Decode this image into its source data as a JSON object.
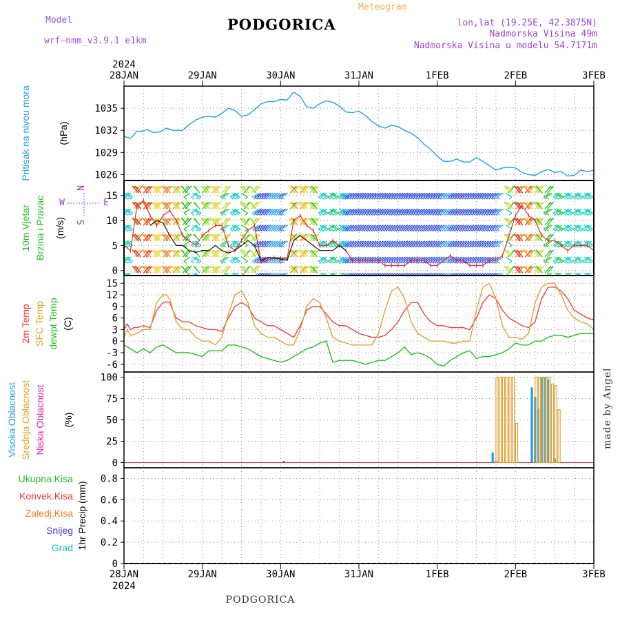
{
  "header": {
    "model_label": "Model",
    "model_name": "wrf—nmm_v3.9.1  e1km",
    "title": "PODGORICA",
    "meteogram": "Meteogram",
    "lonlat": "lon,lat (19.25E, 42.3875N)",
    "altitude": "Nadmorska Visina 49m",
    "model_altitude": "Nadmorska Visina u modelu 54.7171m",
    "year": "2024",
    "footer": "PODGORICA",
    "credit": "made by Angel",
    "colors": {
      "model": "#a050d0",
      "meteogram": "#e8b450",
      "info": "#a040d0"
    }
  },
  "time_axis": {
    "labels": [
      "28JAN",
      "29JAN",
      "30JAN",
      "31JAN",
      "1FEB",
      "2FEB",
      "3FEB"
    ],
    "hours_total": 144
  },
  "chart_data": [
    {
      "type": "line",
      "panel": "pressure",
      "ylabel_lines": [
        "Pritisak na nivou mora",
        "(hPa)"
      ],
      "ylabel_colors": [
        "#1ea0e8",
        "#000000"
      ],
      "yticks": [
        1026,
        1029,
        1032,
        1035
      ],
      "ylim": [
        1025.2,
        1038.0
      ],
      "series": [
        {
          "color": "#1ea0e8",
          "x": [
            0,
            2,
            4,
            5,
            7,
            9,
            11,
            13,
            15,
            18,
            20,
            22,
            24,
            26,
            28,
            30,
            32,
            34,
            36,
            38,
            40,
            42,
            44,
            46,
            48,
            50,
            52,
            54,
            56,
            58,
            60,
            62,
            64,
            66,
            68,
            70,
            72,
            74,
            76,
            78,
            80,
            82,
            84,
            86,
            88,
            90,
            92,
            94,
            96,
            98,
            100,
            102,
            104,
            106,
            108,
            110,
            112,
            114,
            116,
            118,
            120,
            122,
            124,
            126,
            128,
            130,
            132,
            134,
            136,
            138,
            140,
            142,
            144
          ],
          "y": [
            1031.2,
            1030.9,
            1031.9,
            1031.8,
            1032.1,
            1031.7,
            1031.8,
            1032.3,
            1032.0,
            1032.0,
            1032.8,
            1033.4,
            1033.8,
            1033.9,
            1033.8,
            1034.3,
            1035.0,
            1034.7,
            1033.9,
            1034.1,
            1034.8,
            1035.6,
            1035.9,
            1035.9,
            1036.2,
            1036.1,
            1037.2,
            1036.6,
            1035.2,
            1035.0,
            1035.6,
            1036.0,
            1035.8,
            1035.3,
            1034.5,
            1034.4,
            1034.6,
            1034.0,
            1033.2,
            1032.6,
            1032.3,
            1032.7,
            1032.5,
            1032.0,
            1031.6,
            1031.0,
            1030.1,
            1029.4,
            1028.5,
            1027.8,
            1027.8,
            1028.1,
            1027.7,
            1027.7,
            1028.3,
            1027.8,
            1027.2,
            1026.6,
            1026.9,
            1027.0,
            1026.9,
            1026.3,
            1026.0,
            1025.9,
            1026.4,
            1026.7,
            1026.3,
            1026.4,
            1025.8,
            1025.9,
            1026.6,
            1026.4,
            1026.6
          ]
        }
      ]
    },
    {
      "type": "line",
      "panel": "wind",
      "ylabel_lines": [
        "10m Vjetar",
        "Brzina i Pravac",
        "(m/s)"
      ],
      "ylabel_colors": [
        "#20c020",
        "#20c020",
        "#000000"
      ],
      "compass": {
        "N": "N",
        "E": "E",
        "W": "W",
        "S": "S"
      },
      "yticks": [
        0,
        5,
        10,
        15
      ],
      "ylim": [
        -1.0,
        18.0
      ],
      "arrow_speed_colors": [
        "#7a1fd0",
        "#2040e0",
        "#1ea0e8",
        "#10d0c0",
        "#20c020",
        "#a0e020",
        "#f0d020",
        "#f08020",
        "#e02020"
      ],
      "series": [
        {
          "color": "#e03030",
          "name": "",
          "x": [
            0,
            2,
            4,
            6,
            8,
            10,
            12,
            14,
            16,
            18,
            20,
            22,
            24,
            26,
            28,
            30,
            32,
            34,
            36,
            38,
            40,
            42,
            44,
            46,
            48,
            50,
            52,
            54,
            56,
            58,
            60,
            62,
            64,
            66,
            68,
            70,
            72,
            74,
            76,
            78,
            80,
            82,
            84,
            86,
            88,
            90,
            92,
            94,
            96,
            98,
            100,
            102,
            104,
            106,
            108,
            110,
            112,
            114,
            116,
            118,
            120,
            122,
            124,
            126,
            128,
            130,
            132,
            134,
            136,
            138,
            140,
            142,
            144
          ],
          "y": [
            5,
            4,
            13,
            14,
            11,
            9,
            11,
            12,
            10,
            7,
            6,
            5,
            7,
            8,
            9,
            9,
            5,
            4,
            6,
            8,
            9,
            1.8,
            2.0,
            2.6,
            2.5,
            2.3,
            10,
            11,
            9,
            8,
            5,
            5,
            6,
            5,
            4,
            2,
            2,
            2,
            2,
            2,
            1,
            1,
            1,
            1,
            2,
            2,
            2,
            1,
            1,
            2,
            3,
            2,
            2,
            1,
            1,
            1,
            2,
            2,
            3,
            7,
            11,
            13,
            11,
            10,
            7,
            6,
            6,
            5,
            4,
            5,
            5,
            5,
            4
          ]
        },
        {
          "color": "#101010",
          "name": "",
          "x": [
            8,
            10,
            12,
            14,
            16,
            18,
            20,
            22,
            24,
            26,
            28,
            30,
            32,
            34,
            36,
            38,
            40,
            42,
            44,
            46,
            48,
            50,
            52,
            54,
            56,
            58,
            60,
            62,
            64,
            66,
            68
          ],
          "y": [
            9,
            10,
            9.5,
            7,
            5,
            5,
            4,
            3.6,
            4,
            4,
            5,
            4,
            3.5,
            4,
            5,
            6,
            5,
            2,
            2.6,
            2.5,
            2.3,
            2.0,
            6,
            7,
            6,
            5,
            4,
            4,
            4,
            5,
            4
          ]
        }
      ]
    },
    {
      "type": "line",
      "panel": "temperature",
      "ylabel_lines": [
        "2m Temp",
        "SFC Temp",
        "dewpt Temp",
        "(C)"
      ],
      "ylabel_colors": [
        "#f03030",
        "#e8a020",
        "#20c020",
        "#000000"
      ],
      "yticks": [
        -6,
        -3,
        0,
        3,
        6,
        9,
        12,
        15
      ],
      "ylim": [
        -8.0,
        17.0
      ],
      "series": [
        {
          "color": "#f04040",
          "x": [
            0,
            1,
            2,
            3,
            4,
            6,
            8,
            10,
            12,
            13,
            14,
            16,
            18,
            20,
            22,
            24,
            26,
            28,
            30,
            32,
            34,
            36,
            38,
            40,
            42,
            44,
            46,
            48,
            50,
            52,
            54,
            56,
            58,
            60,
            62,
            64,
            66,
            68,
            70,
            72,
            74,
            76,
            78,
            80,
            82,
            84,
            86,
            88,
            90,
            92,
            94,
            96,
            98,
            100,
            102,
            104,
            106,
            108,
            110,
            112,
            114,
            116,
            118,
            120,
            122,
            124,
            126,
            128,
            130,
            132,
            134,
            136,
            138,
            140,
            142,
            144
          ],
          "y": [
            3,
            4.5,
            3,
            3.5,
            3.5,
            4,
            3.5,
            8,
            10,
            10.2,
            10,
            6,
            5,
            5,
            4,
            3.5,
            3,
            3,
            2.5,
            6,
            9,
            10,
            9,
            6,
            5,
            4,
            4,
            3,
            2,
            1,
            4,
            8,
            9,
            9,
            7,
            5,
            4,
            4,
            3,
            2,
            1.5,
            1,
            1,
            1.5,
            3,
            5,
            8,
            10,
            10,
            7,
            5,
            4,
            4,
            3.5,
            3.5,
            3.5,
            3,
            6,
            10,
            12,
            11,
            8,
            6,
            5,
            4,
            3.5,
            5,
            11,
            14,
            14,
            13,
            11,
            8,
            7,
            6,
            5.5
          ]
        },
        {
          "color": "#e0a030",
          "x": [
            0,
            1,
            2,
            4,
            6,
            8,
            10,
            12,
            13,
            14,
            16,
            18,
            20,
            22,
            24,
            26,
            28,
            30,
            32,
            34,
            36,
            38,
            40,
            42,
            44,
            46,
            48,
            50,
            52,
            54,
            56,
            58,
            60,
            62,
            64,
            66,
            68,
            70,
            72,
            74,
            76,
            78,
            80,
            82,
            84,
            86,
            88,
            90,
            92,
            94,
            96,
            98,
            100,
            102,
            104,
            106,
            108,
            110,
            112,
            114,
            116,
            118,
            120,
            122,
            124,
            126,
            128,
            130,
            132,
            134,
            136,
            138,
            140,
            142,
            144
          ],
          "y": [
            1,
            3,
            1.5,
            2,
            3,
            3,
            10,
            12,
            12,
            11,
            5,
            3,
            3,
            1,
            0,
            0,
            -1,
            1,
            7,
            12,
            13,
            10,
            4,
            2,
            1,
            1,
            0,
            -1,
            -1,
            3,
            9,
            11,
            10,
            6,
            1,
            0,
            -0.5,
            -1,
            -1,
            -1,
            -1,
            2,
            8,
            13,
            14,
            11,
            5,
            2,
            1,
            0,
            0,
            0,
            -0.5,
            -0.5,
            0,
            0,
            8,
            14,
            15,
            11,
            4,
            1,
            1,
            0.5,
            2,
            10,
            14,
            15,
            15,
            12,
            8,
            6,
            5,
            4.5,
            3
          ]
        },
        {
          "color": "#20c020",
          "x": [
            0,
            2,
            4,
            6,
            8,
            10,
            12,
            14,
            16,
            18,
            20,
            22,
            24,
            26,
            28,
            30,
            32,
            34,
            36,
            38,
            40,
            42,
            44,
            46,
            48,
            50,
            52,
            54,
            56,
            58,
            60,
            62,
            64,
            66,
            68,
            70,
            72,
            74,
            76,
            78,
            80,
            82,
            84,
            86,
            88,
            90,
            92,
            94,
            96,
            98,
            100,
            102,
            104,
            106,
            108,
            110,
            112,
            114,
            116,
            118,
            120,
            122,
            124,
            126,
            128,
            130,
            132,
            134,
            136,
            138,
            140,
            142,
            144
          ],
          "y": [
            -1,
            -2,
            -3,
            -2,
            -3,
            -1.5,
            -1,
            -2,
            -3,
            -3,
            -3,
            -3.5,
            -4,
            -2.5,
            -2.5,
            -2.5,
            -1,
            -1,
            -1.5,
            -2,
            -3,
            -4,
            -4.5,
            -5,
            -5.5,
            -5,
            -4,
            -3,
            -2,
            -1.5,
            -0.5,
            0,
            -5.5,
            -5,
            -5,
            -5,
            -5.5,
            -6,
            -5.5,
            -5,
            -5,
            -4,
            -3,
            -1.5,
            -3.5,
            -3,
            -3.5,
            -4.5,
            -6,
            -6.5,
            -5,
            -4,
            -3,
            -2.5,
            -4.5,
            -4,
            -4,
            -3.5,
            -3,
            -2,
            -0.5,
            -1,
            -1,
            0,
            0,
            1,
            1.5,
            1.5,
            1,
            1.5,
            2,
            2,
            2
          ]
        }
      ]
    },
    {
      "type": "bar",
      "panel": "clouds",
      "ylabel_lines": [
        "Visoka Oblacnost",
        "Srednja Oblacnost",
        "Niska Oblacnost",
        "(%)"
      ],
      "ylabel_colors": [
        "#1ea0e8",
        "#e8a020",
        "#e020a0",
        "#000000"
      ],
      "yticks": [
        0,
        25,
        50,
        75,
        100
      ],
      "ylim": [
        -6,
        106
      ],
      "series": [
        {
          "name": "",
          "color": "#1ea0e8",
          "style": "fill",
          "x": [
            113,
            114,
            125,
            126,
            127,
            128,
            129,
            130,
            132
          ],
          "y": [
            12,
            2,
            88,
            77,
            63,
            100,
            100,
            97,
            5
          ]
        },
        {
          "name": "",
          "color": "#e0a030",
          "style": "outline",
          "x": [
            114,
            115,
            116,
            117,
            118,
            119,
            120,
            126,
            127,
            128,
            129,
            130,
            131,
            132,
            133
          ],
          "y": [
            100,
            100,
            100,
            100,
            100,
            100,
            46,
            100,
            100,
            100,
            100,
            100,
            92,
            90,
            62
          ]
        },
        {
          "name": "",
          "color": "#e03050",
          "style": "fill",
          "x": [
            49
          ],
          "y": [
            2
          ]
        }
      ]
    },
    {
      "type": "bar",
      "panel": "precip",
      "ylabel_lines": [
        "1hr Precip (mm)"
      ],
      "ylabel_colors": [
        "#000000"
      ],
      "legend": [
        {
          "label": "Ukupna  Kisa",
          "color": "#20c020"
        },
        {
          "label": "Konvek.Kisa",
          "color": "#f03030"
        },
        {
          "label": "Zaledj.Kisa",
          "color": "#f08020"
        },
        {
          "label": "Snijeg",
          "color": "#4040e0"
        },
        {
          "label": "Grad",
          "color": "#20c0b0"
        }
      ],
      "yticks": [
        "0",
        "0.2",
        "0.4",
        "0.6",
        "0.8"
      ],
      "ylim": [
        0,
        0.9
      ],
      "series": []
    }
  ]
}
